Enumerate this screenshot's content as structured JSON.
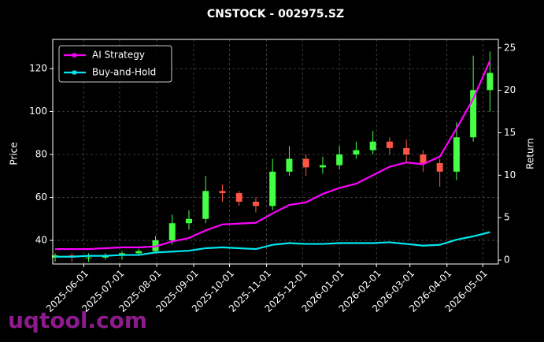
{
  "chart_data": {
    "type": "candlestick",
    "title": "CNSTOCK - 002975.SZ",
    "x_label": null,
    "y_label": "Price",
    "y2_label": "Return",
    "x": [
      "2025-05-08",
      "2025-05-22",
      "2025-06-05",
      "2025-06-19",
      "2025-07-03",
      "2025-07-17",
      "2025-07-31",
      "2025-08-14",
      "2025-08-28",
      "2025-09-11",
      "2025-09-25",
      "2025-10-09",
      "2025-10-23",
      "2025-11-06",
      "2025-11-20",
      "2025-12-04",
      "2025-12-18",
      "2026-01-01",
      "2026-01-15",
      "2026-01-29",
      "2026-02-12",
      "2026-02-26",
      "2026-03-12",
      "2026-03-26",
      "2026-04-09",
      "2026-04-23",
      "2026-05-07"
    ],
    "open": [
      32,
      33,
      32,
      32,
      33,
      34,
      35,
      40,
      48,
      50,
      63,
      62,
      58,
      56,
      72,
      78,
      74,
      75,
      80,
      82,
      86,
      83,
      80,
      76,
      72,
      88,
      110
    ],
    "high": [
      34,
      34,
      34,
      34,
      35,
      36,
      42,
      52,
      54,
      70,
      66,
      63,
      60,
      78,
      84,
      80,
      79,
      84,
      86,
      91,
      88,
      87,
      82,
      78,
      95,
      126,
      128
    ],
    "low": [
      30,
      30,
      30,
      31,
      31,
      33,
      34,
      38,
      45,
      48,
      58,
      56,
      53,
      54,
      70,
      70,
      71,
      73,
      78,
      80,
      80,
      76,
      72,
      65,
      68,
      86,
      100
    ],
    "close": [
      33,
      32,
      32,
      33,
      34,
      35,
      40,
      48,
      50,
      63,
      62,
      58,
      56,
      72,
      78,
      74,
      75,
      80,
      82,
      86,
      83,
      80,
      76,
      72,
      88,
      110,
      118
    ],
    "up_color": "#44ff44",
    "down_color": "#ff5544",
    "series": [
      {
        "name": "AI Strategy",
        "color": "#ff00ff",
        "axis": "y2",
        "values": [
          1.3,
          1.3,
          1.3,
          1.4,
          1.5,
          1.5,
          1.6,
          2.2,
          2.6,
          3.5,
          4.2,
          4.3,
          4.4,
          5.5,
          6.5,
          6.8,
          7.8,
          8.5,
          9.0,
          10.0,
          11.0,
          11.5,
          11.3,
          12.2,
          15.5,
          19.0,
          23.5
        ]
      },
      {
        "name": "Buy-and-Hold",
        "color": "#00e5ee",
        "axis": "y2",
        "values": [
          0.4,
          0.4,
          0.5,
          0.5,
          0.6,
          0.6,
          0.9,
          1.0,
          1.1,
          1.4,
          1.5,
          1.4,
          1.3,
          1.8,
          2.0,
          1.9,
          1.9,
          2.0,
          2.0,
          2.0,
          2.1,
          1.9,
          1.7,
          1.8,
          2.4,
          2.8,
          3.3
        ]
      }
    ],
    "xlim": [
      "2025-05-06",
      "2026-05-14"
    ],
    "xticks": [
      "2025-06-01",
      "2025-07-01",
      "2025-08-01",
      "2025-09-01",
      "2025-10-01",
      "2025-11-01",
      "2025-12-01",
      "2026-01-01",
      "2026-02-01",
      "2026-03-01",
      "2026-04-01",
      "2026-05-01"
    ],
    "ylim": [
      29,
      133.6
    ],
    "yticks": [
      40,
      60,
      80,
      100,
      120
    ],
    "y2lim": [
      -0.46,
      26.0
    ],
    "y2ticks": [
      0,
      5,
      10,
      15,
      20,
      25
    ],
    "grid": true,
    "legend": "upper left",
    "watermark": "uqtool.com"
  }
}
